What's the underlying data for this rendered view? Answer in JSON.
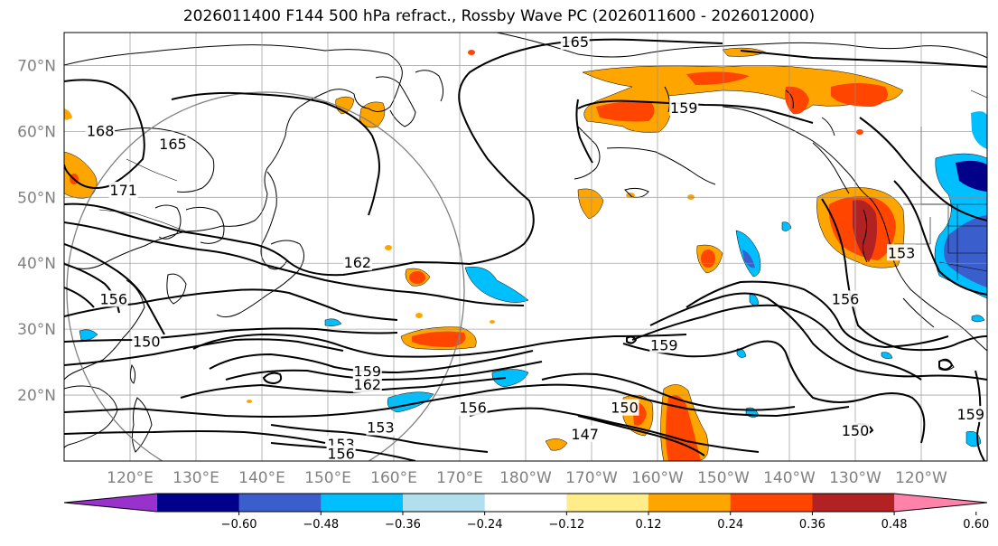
{
  "title": "2026011400 F144 500 hPa refract., Rossby Wave PC (2026011600 - 2026012000)",
  "lat_labels": [
    "70°N",
    "60°N",
    "50°N",
    "40°N",
    "30°N",
    "20°N"
  ],
  "lon_labels": [
    "120°E",
    "130°E",
    "140°E",
    "150°E",
    "160°E",
    "170°E",
    "180°W",
    "170°W",
    "160°W",
    "150°W",
    "140°W",
    "130°W",
    "120°W"
  ],
  "map_extent": {
    "lon_min": 110,
    "lon_max": 250,
    "lat_min": 10,
    "lat_max": 75
  },
  "colorbar": {
    "colors": [
      "#9932cc",
      "#00008b",
      "#3a5fcd",
      "#00bfff",
      "#b2dfee",
      "#ffffff",
      "#ffec8b",
      "#ffa500",
      "#ff4500",
      "#b22222",
      "#ff82ab"
    ],
    "tick_labels": [
      "−0.60",
      "−0.48",
      "−0.36",
      "−0.24",
      "−0.12",
      "0.12",
      "0.24",
      "0.36",
      "0.48",
      "0.60"
    ]
  },
  "contour_labels": [
    {
      "text": "165",
      "lon": 187.5,
      "lat": 73.5
    },
    {
      "text": "159",
      "lon": 204,
      "lat": 63.5
    },
    {
      "text": "168",
      "lon": 115.5,
      "lat": 60
    },
    {
      "text": "165",
      "lon": 126.5,
      "lat": 58
    },
    {
      "text": "171",
      "lon": 119,
      "lat": 51
    },
    {
      "text": "162",
      "lon": 154.5,
      "lat": 40
    },
    {
      "text": "156",
      "lon": 117.5,
      "lat": 34.5
    },
    {
      "text": "150",
      "lon": 122.5,
      "lat": 28
    },
    {
      "text": "159",
      "lon": 156,
      "lat": 23.5
    },
    {
      "text": "162",
      "lon": 156,
      "lat": 21.5
    },
    {
      "text": "156",
      "lon": 172,
      "lat": 18
    },
    {
      "text": "153",
      "lon": 158,
      "lat": 15
    },
    {
      "text": "153",
      "lon": 152,
      "lat": 12.5
    },
    {
      "text": "156",
      "lon": 152,
      "lat": 11
    },
    {
      "text": "159",
      "lon": 201,
      "lat": 27.5
    },
    {
      "text": "150",
      "lon": 195,
      "lat": 18
    },
    {
      "text": "147",
      "lon": 189,
      "lat": 14
    },
    {
      "text": "150",
      "lon": 230,
      "lat": 14.5
    },
    {
      "text": "156",
      "lon": 228.5,
      "lat": 34.5
    },
    {
      "text": "153",
      "lon": 237,
      "lat": 41.5
    },
    {
      "text": "159",
      "lon": 247.5,
      "lat": 17
    }
  ]
}
